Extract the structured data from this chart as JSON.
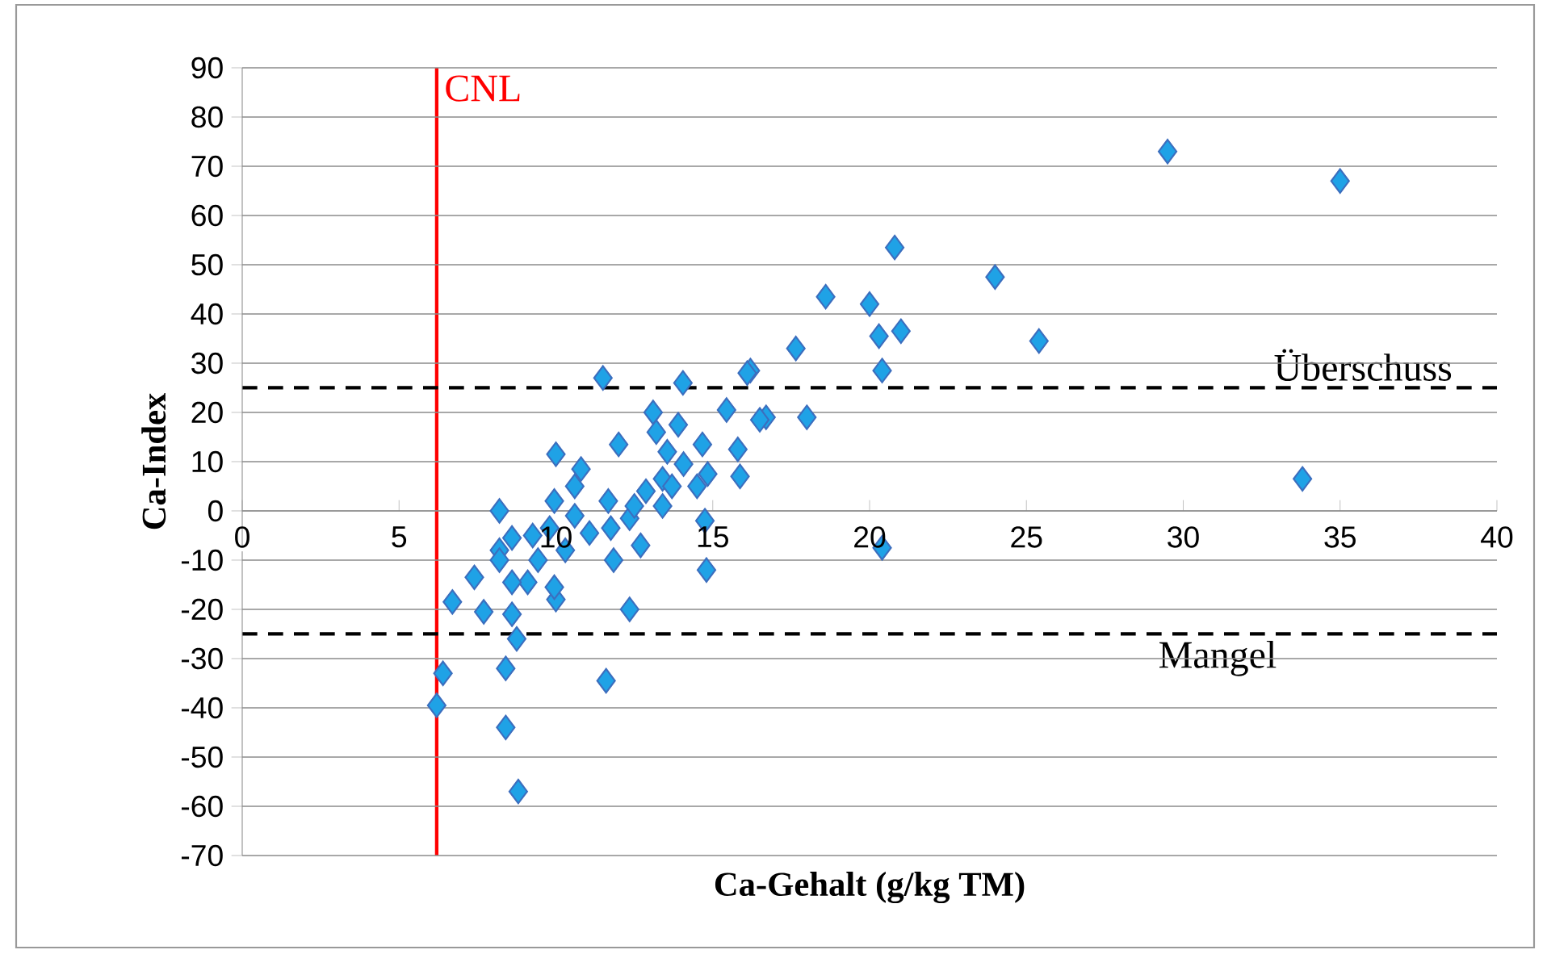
{
  "chart_data": {
    "type": "scatter",
    "xlabel": "Ca-Gehalt (g/kg TM)",
    "ylabel": "Ca-Index",
    "xlim": [
      0,
      40
    ],
    "xticks": [
      0,
      5,
      10,
      15,
      20,
      25,
      30,
      35,
      40
    ],
    "ylim": [
      -70,
      90
    ],
    "yticks": [
      -70,
      -60,
      -50,
      -40,
      -30,
      -20,
      -10,
      0,
      10,
      20,
      30,
      40,
      50,
      60,
      70,
      80,
      90
    ],
    "grid": "y",
    "marker": "diamond",
    "x": [
      29.5,
      35.0,
      33.8,
      24.0,
      25.4,
      20.8,
      18.6,
      20.0,
      20.3,
      21.0,
      20.4,
      17.65,
      18.0,
      16.2,
      16.7,
      20.4,
      11.5,
      12.0,
      10.0,
      10.8,
      8.2,
      8.2,
      7.4,
      6.7,
      7.7,
      8.6,
      8.75,
      6.4,
      6.2,
      8.4,
      8.4,
      8.8,
      11.6,
      12.35,
      10.0,
      14.75,
      14.8,
      14.05,
      13.1,
      8.6,
      9.26,
      9.8,
      9.95,
      10.6,
      10.6,
      11.07,
      11.67,
      11.75,
      11.84,
      12.35,
      12.7,
      12.87,
      13.4,
      13.55,
      13.7,
      14.07,
      14.5,
      14.67,
      14.84,
      15.44,
      15.8,
      15.87,
      16.1,
      16.5,
      9.1,
      9.95,
      9.43,
      8.6,
      8.2,
      10.3,
      13.2,
      13.9,
      13.4,
      12.5
    ],
    "values": [
      73,
      67,
      6.5,
      47.5,
      34.5,
      53.5,
      43.5,
      42,
      35.5,
      36.5,
      28.5,
      33,
      19,
      28.5,
      19,
      -7.5,
      27,
      13.5,
      11.5,
      8.5,
      0,
      -8,
      -13.5,
      -18.5,
      -20.5,
      -21,
      -26,
      -33,
      -39.5,
      -32,
      -44,
      -57,
      -34.5,
      -20,
      -18,
      -2,
      -12,
      26,
      20,
      -5.5,
      -5,
      -3.5,
      2,
      5,
      -1,
      -4.5,
      2,
      -3.5,
      -10,
      -1.5,
      -7,
      4,
      6.5,
      12,
      5,
      9.5,
      5,
      13.5,
      7.5,
      20.5,
      12.5,
      7,
      28,
      18.5,
      -14.5,
      -15.5,
      -10,
      -14.5,
      -10,
      -8,
      16,
      17.5,
      1,
      1
    ],
    "color": "#1fa2e6",
    "ref_lines": [
      {
        "axis": "x",
        "value": 6.2,
        "label": "CNL",
        "color": "#ff0000",
        "line_style": "solid"
      },
      {
        "axis": "y",
        "value": 25,
        "label": "Überschuss",
        "color": "#000000",
        "line_style": "dashed"
      },
      {
        "axis": "y",
        "value": -25,
        "label": "Mangel",
        "color": "#000000",
        "line_style": "dashed"
      }
    ]
  }
}
